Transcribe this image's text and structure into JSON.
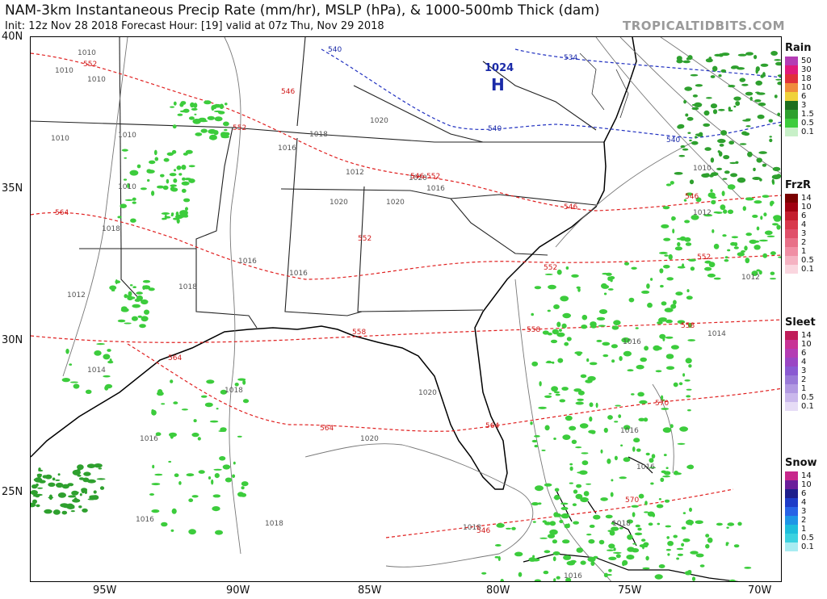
{
  "header": {
    "title": "NAM-3km Instantaneous Precip Rate (mm/hr), MSLP (hPa), & 1000-500mb Thick (dam)",
    "subtitle": "Init: 12z Nov 28 2018   Forecast Hour: [19]   valid at 07z Thu, Nov 29 2018",
    "brand": "TROPICALTIDBITS.COM"
  },
  "axes": {
    "lat_labels": [
      "40N",
      "35N",
      "30N",
      "25N"
    ],
    "lon_labels": [
      "95W",
      "90W",
      "85W",
      "80W",
      "75W",
      "70W"
    ]
  },
  "map": {
    "high_center": {
      "value": "1024",
      "letter": "H"
    },
    "isobar_labels": [
      "1010",
      "1010",
      "1010",
      "1010",
      "1010",
      "1010",
      "1012",
      "1018",
      "1016",
      "1018",
      "1020",
      "1020",
      "1020",
      "1020",
      "1016",
      "1016",
      "1018",
      "1016",
      "1012",
      "1014",
      "1018",
      "1016",
      "1016",
      "1018",
      "1020",
      "1020",
      "1018",
      "1012",
      "1010",
      "1014",
      "1016",
      "1016",
      "1016",
      "1018",
      "1016",
      "1012"
    ],
    "thickness_red_labels": [
      "552",
      "546",
      "552",
      "564",
      "546",
      "552",
      "546",
      "552",
      "546",
      "552",
      "558",
      "558",
      "558",
      "564",
      "564",
      "564",
      "570",
      "570",
      "546",
      "552"
    ],
    "thickness_blue_labels": [
      "540",
      "534",
      "540",
      "540"
    ]
  },
  "legends": [
    {
      "title": "Rain",
      "levels": [
        "50",
        "30",
        "18",
        "10",
        "6",
        "3",
        "1.5",
        "0.5",
        "0.1"
      ],
      "colors": [
        "#b43cb4",
        "#e01a7a",
        "#e0303a",
        "#f08c3c",
        "#f0d23c",
        "#1e6e1e",
        "#2ea02e",
        "#3ccc3c",
        "#c8f0c8"
      ]
    },
    {
      "title": "FrzR",
      "levels": [
        "14",
        "10",
        "6",
        "4",
        "3",
        "2",
        "1",
        "0.5",
        "0.1"
      ],
      "colors": [
        "#7a0000",
        "#a00010",
        "#c41e2e",
        "#d8394c",
        "#e0506a",
        "#e87088",
        "#f08ea4",
        "#f5b2c2",
        "#fad6df"
      ]
    },
    {
      "title": "Sleet",
      "levels": [
        "14",
        "10",
        "6",
        "4",
        "3",
        "2",
        "1",
        "0.5",
        "0.1"
      ],
      "colors": [
        "#c01e5a",
        "#c83296",
        "#b43cb4",
        "#9a46c4",
        "#8a5ad2",
        "#9a7ad8",
        "#b29ae2",
        "#cab8ec",
        "#e6dcf6"
      ]
    },
    {
      "title": "Snow",
      "levels": [
        "14",
        "10",
        "6",
        "4",
        "3",
        "2",
        "1",
        "0.5",
        "0.1"
      ],
      "colors": [
        "#c8288c",
        "#6a1e9a",
        "#1e1e8c",
        "#1e3cc8",
        "#2864e6",
        "#1e96e6",
        "#1ebedc",
        "#3cd2e0",
        "#a8ecf2"
      ]
    }
  ]
}
